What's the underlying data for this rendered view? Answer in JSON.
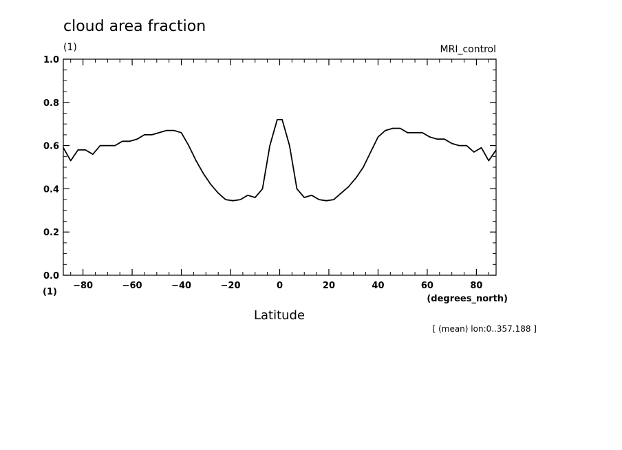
{
  "chart_data": {
    "type": "line",
    "title": "cloud area fraction",
    "y_units": "(1)",
    "x_units_left": "(1)",
    "dataset_label": "MRI_control",
    "xlabel": "Latitude",
    "x_units": "(degrees_north)",
    "annotation": "[ (mean) lon:0..357.188 ]",
    "xlim": [
      -88,
      88
    ],
    "ylim": [
      0.0,
      1.0
    ],
    "x_ticks": [
      -80,
      -60,
      -40,
      -20,
      0,
      20,
      40,
      60,
      80
    ],
    "x_tick_labels": [
      "−80",
      "−60",
      "−40",
      "−20",
      "0",
      "20",
      "40",
      "60",
      "80"
    ],
    "y_ticks": [
      0.0,
      0.2,
      0.4,
      0.6,
      0.8,
      1.0
    ],
    "y_tick_labels": [
      "0.0",
      "0.2",
      "0.4",
      "0.6",
      "0.8",
      "1.0"
    ],
    "grid": false,
    "legend": "none",
    "series": [
      {
        "x": [
          -88,
          -85,
          -82,
          -79,
          -76,
          -73,
          -70,
          -67,
          -64,
          -61,
          -58,
          -55,
          -52,
          -49,
          -46,
          -43,
          -40,
          -37,
          -34,
          -31,
          -28,
          -25,
          -22,
          -19,
          -16,
          -13,
          -10,
          -7,
          -4,
          -1,
          1,
          4,
          7,
          10,
          13,
          16,
          19,
          22,
          25,
          28,
          31,
          34,
          37,
          40,
          43,
          46,
          49,
          52,
          55,
          58,
          61,
          64,
          67,
          70,
          73,
          76,
          79,
          82,
          85,
          88
        ],
        "y": [
          0.59,
          0.53,
          0.58,
          0.58,
          0.56,
          0.6,
          0.6,
          0.6,
          0.62,
          0.62,
          0.63,
          0.65,
          0.65,
          0.66,
          0.67,
          0.67,
          0.66,
          0.6,
          0.53,
          0.47,
          0.42,
          0.38,
          0.35,
          0.345,
          0.35,
          0.37,
          0.36,
          0.4,
          0.6,
          0.72,
          0.72,
          0.6,
          0.4,
          0.36,
          0.37,
          0.35,
          0.345,
          0.35,
          0.38,
          0.41,
          0.45,
          0.5,
          0.57,
          0.64,
          0.67,
          0.68,
          0.68,
          0.66,
          0.66,
          0.66,
          0.64,
          0.63,
          0.63,
          0.61,
          0.6,
          0.6,
          0.57,
          0.59,
          0.53,
          0.58
        ]
      }
    ]
  }
}
